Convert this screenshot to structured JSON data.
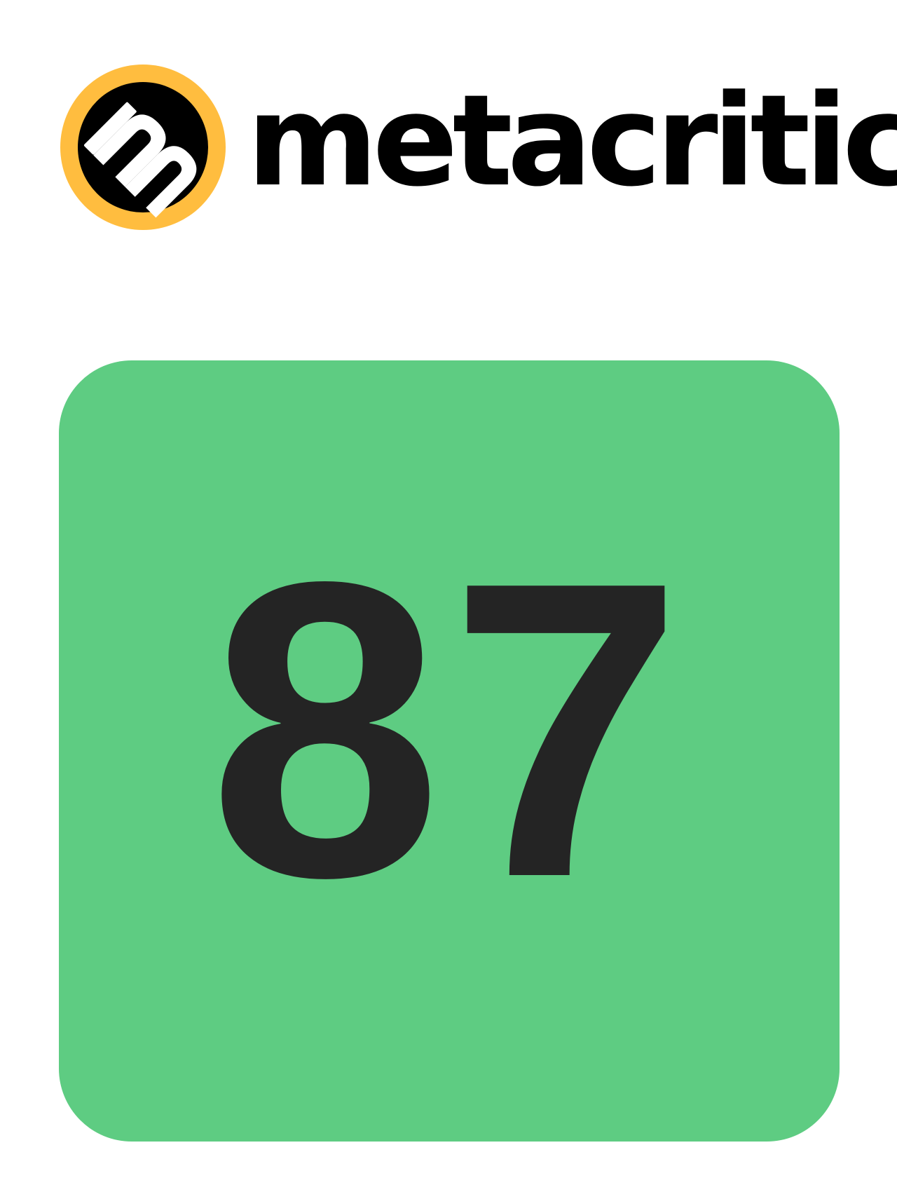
{
  "brand": {
    "logo_icon": "metacritic-m-icon",
    "logo_ring_color": "#FFBD3F",
    "logo_disc_color": "#000000",
    "logo_letter_color": "#FFFFFF",
    "wordmark": "metacritic"
  },
  "score": {
    "value": "87",
    "tile_color": "#5ECC82",
    "text_color": "#242424"
  }
}
